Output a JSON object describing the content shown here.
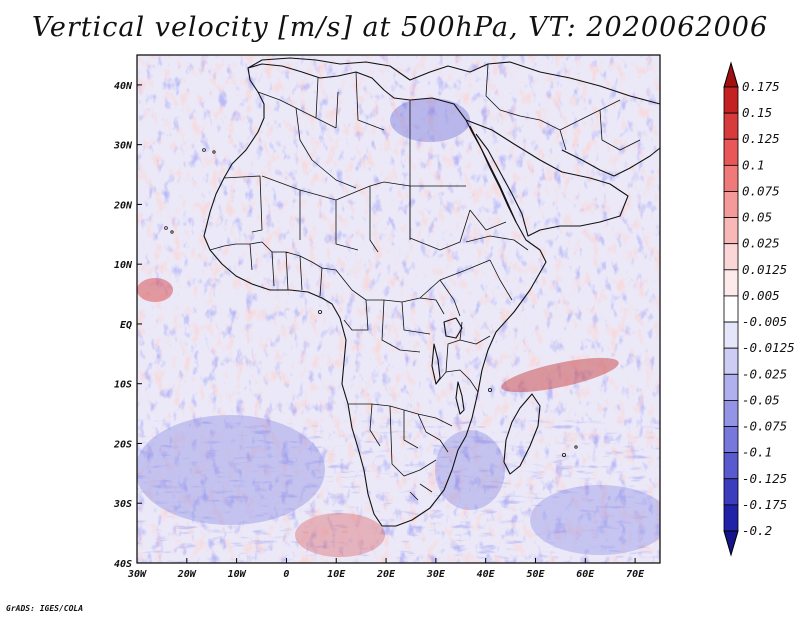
{
  "title": "Vertical velocity [m/s] at 500hPa, VT: 2020062006",
  "credit": "GrADS: IGES/COLA",
  "map": {
    "lon_range": [
      -30,
      75
    ],
    "lat_range": [
      -40,
      45
    ],
    "lon_ticks": [
      {
        "value": -30,
        "label": "30W"
      },
      {
        "value": -20,
        "label": "20W"
      },
      {
        "value": -10,
        "label": "10W"
      },
      {
        "value": 0,
        "label": "0"
      },
      {
        "value": 10,
        "label": "10E"
      },
      {
        "value": 20,
        "label": "20E"
      },
      {
        "value": 30,
        "label": "30E"
      },
      {
        "value": 40,
        "label": "40E"
      },
      {
        "value": 50,
        "label": "50E"
      },
      {
        "value": 60,
        "label": "60E"
      },
      {
        "value": 70,
        "label": "70E"
      }
    ],
    "lat_ticks": [
      {
        "value": 40,
        "label": "40N"
      },
      {
        "value": 30,
        "label": "30N"
      },
      {
        "value": 20,
        "label": "20N"
      },
      {
        "value": 10,
        "label": "10N"
      },
      {
        "value": 0,
        "label": "EQ"
      },
      {
        "value": -10,
        "label": "10S"
      },
      {
        "value": -20,
        "label": "20S"
      },
      {
        "value": -30,
        "label": "30S"
      },
      {
        "value": -40,
        "label": "40S"
      }
    ]
  },
  "colorbar": {
    "labels": [
      "0.175",
      "0.15",
      "0.125",
      "0.1",
      "0.075",
      "0.05",
      "0.025",
      "0.0125",
      "0.005",
      "-0.005",
      "-0.0125",
      "-0.025",
      "-0.05",
      "-0.075",
      "-0.1",
      "-0.125",
      "-0.175",
      "-0.2"
    ],
    "colors": [
      "#a01010",
      "#c42222",
      "#d83b3b",
      "#e85858",
      "#f07a7a",
      "#f59a9a",
      "#f8b8b8",
      "#fbd6d6",
      "#fdeaea",
      "#ffffff",
      "#e6e6fa",
      "#ccccf5",
      "#b0b0ee",
      "#9494e6",
      "#7878dc",
      "#5a5ad0",
      "#3c3cbf",
      "#2222a8",
      "#14148c"
    ]
  }
}
